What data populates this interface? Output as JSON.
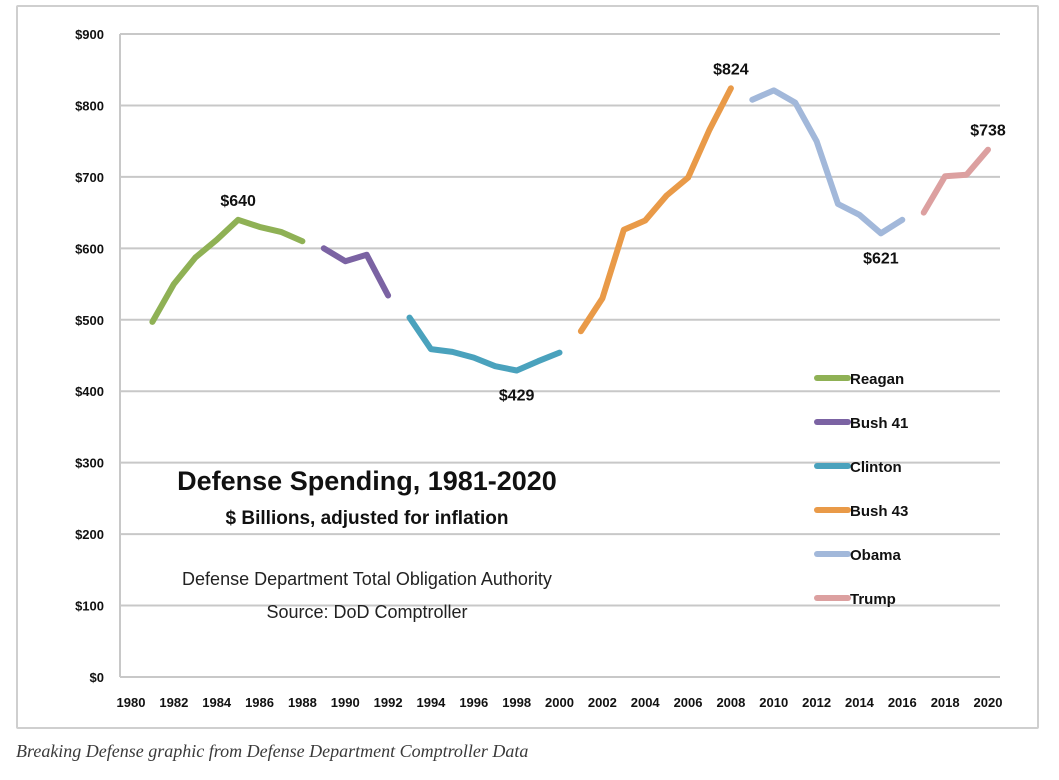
{
  "caption": "Breaking Defense graphic from Defense Department Comptroller Data",
  "chart_data": {
    "type": "line",
    "title": "Defense Spending, 1981-2020",
    "subtitle": "$ Billions, adjusted for inflation",
    "notes": [
      "Defense Department Total Obligation Authority",
      "Source: DoD Comptroller"
    ],
    "xlabel": "",
    "ylabel": "",
    "xlim": [
      1980,
      2020
    ],
    "ylim": [
      0,
      900
    ],
    "grid": true,
    "legend_position": "right",
    "x_ticks": [
      "1980",
      "1982",
      "1984",
      "1986",
      "1988",
      "1990",
      "1992",
      "1994",
      "1996",
      "1998",
      "2000",
      "2002",
      "2004",
      "2006",
      "2008",
      "2010",
      "2012",
      "2014",
      "2016",
      "2018",
      "2020"
    ],
    "y_ticks": [
      "$0",
      "$100",
      "$200",
      "$300",
      "$400",
      "$500",
      "$600",
      "$700",
      "$800",
      "$900"
    ],
    "series": [
      {
        "name": "Reagan",
        "color": "#8fb155",
        "x": [
          1981,
          1982,
          1983,
          1984,
          1985,
          1986,
          1987,
          1988
        ],
        "values": [
          497,
          550,
          587,
          612,
          640,
          630,
          623,
          610
        ]
      },
      {
        "name": "Bush 41",
        "color": "#7b63a3",
        "x": [
          1989,
          1990,
          1991,
          1992
        ],
        "values": [
          600,
          582,
          591,
          534
        ]
      },
      {
        "name": "Clinton",
        "color": "#4aa2bd",
        "x": [
          1993,
          1994,
          1995,
          1996,
          1997,
          1998,
          1999,
          2000
        ],
        "values": [
          503,
          459,
          455,
          447,
          435,
          429,
          442,
          454
        ]
      },
      {
        "name": "Bush 43",
        "color": "#e99a48",
        "x": [
          2001,
          2002,
          2003,
          2004,
          2005,
          2006,
          2007,
          2008
        ],
        "values": [
          484,
          530,
          626,
          639,
          674,
          699,
          766,
          824
        ]
      },
      {
        "name": "Obama",
        "color": "#a2b8da",
        "x": [
          2009,
          2010,
          2011,
          2012,
          2013,
          2014,
          2015,
          2016
        ],
        "values": [
          808,
          821,
          804,
          750,
          662,
          647,
          621,
          640
        ]
      },
      {
        "name": "Trump",
        "color": "#dca0a0",
        "x": [
          2017,
          2018,
          2019,
          2020
        ],
        "values": [
          650,
          701,
          703,
          738
        ]
      }
    ],
    "annotations": [
      {
        "text": "$640",
        "x": 1985,
        "y": 640,
        "position": "above"
      },
      {
        "text": "$429",
        "x": 1998,
        "y": 429,
        "position": "below"
      },
      {
        "text": "$824",
        "x": 2008,
        "y": 824,
        "position": "above"
      },
      {
        "text": "$621",
        "x": 2015,
        "y": 621,
        "position": "below"
      },
      {
        "text": "$738",
        "x": 2020,
        "y": 738,
        "position": "above"
      }
    ]
  }
}
